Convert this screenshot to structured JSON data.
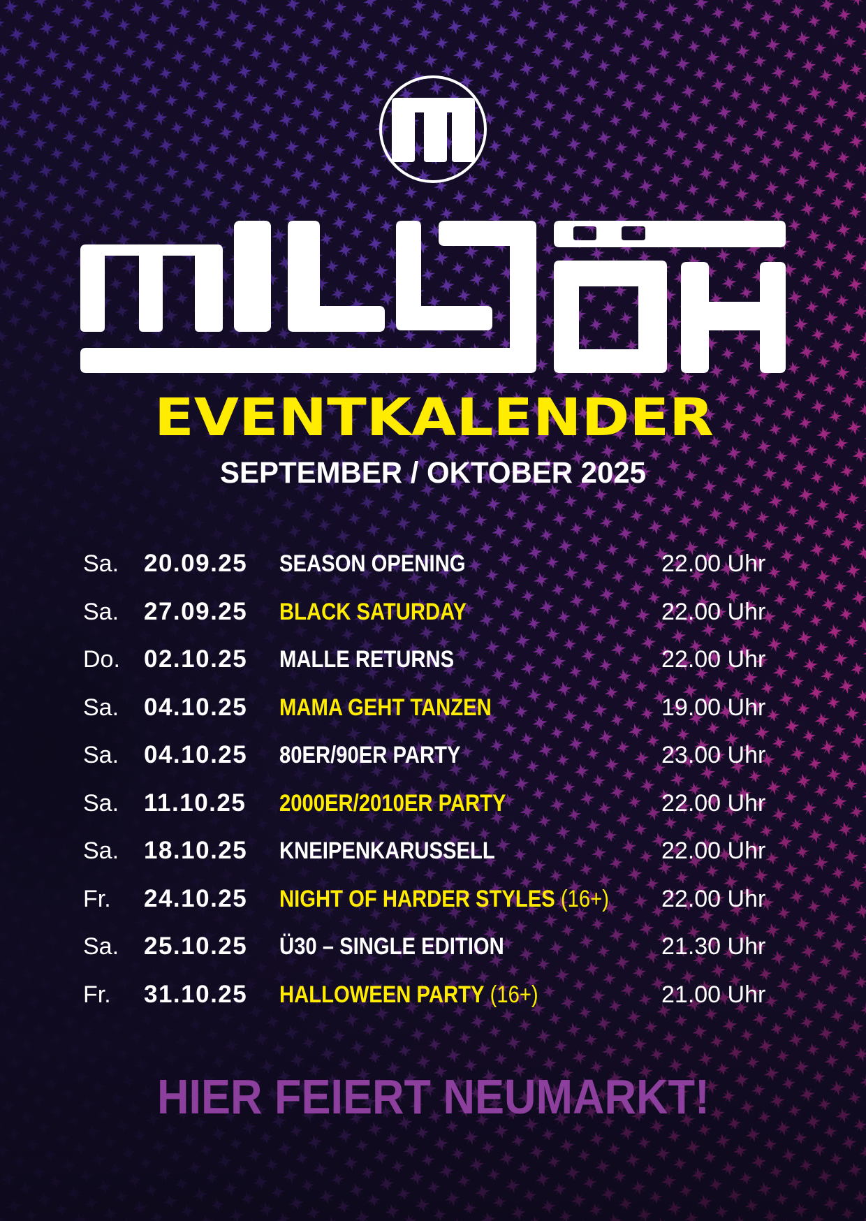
{
  "colors": {
    "background": "#130c24",
    "stars_purple": "#6a3cc0",
    "stars_magenta": "#c0309a",
    "highlight": "#ffec00",
    "white": "#ffffff",
    "footer": "#8c3f9c"
  },
  "logo": {
    "emblem_letter": "M",
    "wordmark": "MILLJÖH"
  },
  "header": {
    "title": "EVENTKALENDER",
    "subtitle": "SEPTEMBER / OKTOBER 2025"
  },
  "events": [
    {
      "day": "Sa.",
      "date": "20.09.25",
      "name": "SEASON OPENING",
      "age": "",
      "time": "22.00 Uhr",
      "highlight": false
    },
    {
      "day": "Sa.",
      "date": "27.09.25",
      "name": "BLACK SATURDAY",
      "age": "",
      "time": "22.00 Uhr",
      "highlight": true
    },
    {
      "day": "Do.",
      "date": "02.10.25",
      "name": "MALLE RETURNS",
      "age": "",
      "time": "22.00 Uhr",
      "highlight": false
    },
    {
      "day": "Sa.",
      "date": "04.10.25",
      "name": "MAMA GEHT TANZEN",
      "age": "",
      "time": "19.00 Uhr",
      "highlight": true
    },
    {
      "day": "Sa.",
      "date": "04.10.25",
      "name": "80ER/90ER PARTY",
      "age": "",
      "time": "23.00 Uhr",
      "highlight": false
    },
    {
      "day": "Sa.",
      "date": "11.10.25",
      "name": "2000ER/2010ER PARTY",
      "age": "",
      "time": "22.00 Uhr",
      "highlight": true
    },
    {
      "day": "Sa.",
      "date": "18.10.25",
      "name": "KNEIPENKARUSSELL",
      "age": "",
      "time": "22.00 Uhr",
      "highlight": false
    },
    {
      "day": "Fr.",
      "date": "24.10.25",
      "name": "NIGHT OF HARDER STYLES",
      "age": " (16+)",
      "time": "22.00 Uhr",
      "highlight": true
    },
    {
      "day": "Sa.",
      "date": "25.10.25",
      "name": "Ü30 – SINGLE EDITION",
      "age": "",
      "time": "21.30 Uhr",
      "highlight": false
    },
    {
      "day": "Fr.",
      "date": "31.10.25",
      "name": "HALLOWEEN PARTY",
      "age": " (16+)",
      "time": "21.00 Uhr",
      "highlight": true
    }
  ],
  "footer": {
    "slogan": "HIER FEIERT NEUMARKT!"
  }
}
